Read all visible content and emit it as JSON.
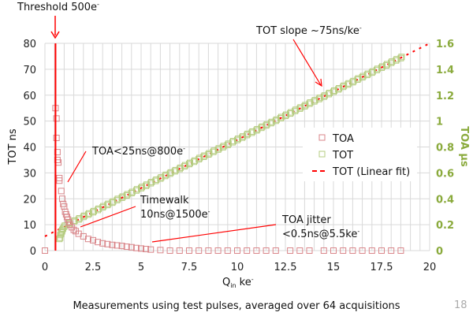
{
  "chart_data": {
    "type": "scatter",
    "title": "",
    "xlabel": "Q",
    "xlabel_sub": "in",
    "xlabel_unit": "ke",
    "xlabel_sup": "-",
    "ylabel": "TOT ns",
    "y2label": "TOA µs",
    "xlim": [
      0,
      20
    ],
    "ylim": [
      0,
      80
    ],
    "y2lim": [
      0,
      1.6
    ],
    "xticks": [
      "0",
      "2.5",
      "5",
      "7.5",
      "10",
      "12.5",
      "15",
      "17.5",
      "20"
    ],
    "yticks": [
      "0",
      "10",
      "20",
      "30",
      "40",
      "50",
      "60",
      "70",
      "80"
    ],
    "y2ticks": [
      "0",
      "0.2",
      "0.4",
      "0.6",
      "0.8",
      "1",
      "1.2",
      "1.4",
      "1.6"
    ],
    "grid": "vertical and horizontal",
    "legend_position": "center-right",
    "colors": {
      "TOA": "#c0504d",
      "TOT": "#9bbb59",
      "fit": "#ff0000",
      "threshold": "#ff0000"
    },
    "series": [
      {
        "name": "TOA",
        "marker": "square",
        "points": [
          [
            0,
            0
          ],
          [
            0.55,
            55
          ],
          [
            0.6,
            51
          ],
          [
            0.6,
            43.5
          ],
          [
            0.65,
            38
          ],
          [
            0.65,
            35
          ],
          [
            0.7,
            34
          ],
          [
            0.75,
            28
          ],
          [
            0.75,
            27
          ],
          [
            0.85,
            23
          ],
          [
            0.9,
            20
          ],
          [
            0.95,
            18
          ],
          [
            1.0,
            17
          ],
          [
            1.05,
            15
          ],
          [
            1.1,
            14
          ],
          [
            1.15,
            13
          ],
          [
            1.2,
            12
          ],
          [
            1.25,
            11
          ],
          [
            1.3,
            10
          ],
          [
            1.4,
            9
          ],
          [
            1.5,
            8
          ],
          [
            1.6,
            7.5
          ],
          [
            1.75,
            6.5
          ],
          [
            2,
            5.5
          ],
          [
            2.25,
            4.5
          ],
          [
            2.5,
            4
          ],
          [
            2.75,
            3.3
          ],
          [
            3,
            2.8
          ],
          [
            3.25,
            2.5
          ],
          [
            3.5,
            2.2
          ],
          [
            3.75,
            2
          ],
          [
            4,
            1.8
          ],
          [
            4.25,
            1.5
          ],
          [
            4.5,
            1.3
          ],
          [
            4.75,
            1
          ],
          [
            5,
            0.8
          ],
          [
            5.25,
            0.6
          ],
          [
            5.5,
            0.4
          ],
          [
            6,
            0.2
          ],
          [
            6.5,
            0
          ],
          [
            7,
            0
          ],
          [
            7.5,
            0
          ],
          [
            8,
            0
          ],
          [
            8.5,
            0
          ],
          [
            9,
            0
          ],
          [
            9.5,
            0
          ],
          [
            10,
            0
          ],
          [
            10.5,
            0
          ],
          [
            11,
            0
          ],
          [
            11.5,
            0
          ],
          [
            12,
            0
          ],
          [
            12.75,
            0
          ],
          [
            13.25,
            0
          ],
          [
            13.75,
            0
          ],
          [
            14.5,
            0
          ],
          [
            15,
            0
          ],
          [
            15.5,
            0
          ],
          [
            16,
            0
          ],
          [
            16.5,
            0
          ],
          [
            17,
            0
          ],
          [
            17.5,
            0
          ],
          [
            18,
            0
          ],
          [
            18.5,
            0
          ]
        ]
      },
      {
        "name": "TOT",
        "marker": "square",
        "points": [
          [
            0.75,
            4.5
          ],
          [
            0.8,
            6
          ],
          [
            0.85,
            7
          ],
          [
            0.9,
            8
          ],
          [
            1.0,
            9.2
          ],
          [
            1.25,
            10.2
          ],
          [
            1.5,
            11.1
          ],
          [
            1.75,
            12.0
          ],
          [
            2,
            13.0
          ],
          [
            2.25,
            13.9
          ],
          [
            2.5,
            14.8
          ],
          [
            2.75,
            15.7
          ],
          [
            3,
            16.7
          ],
          [
            3.25,
            17.6
          ],
          [
            3.5,
            18.5
          ],
          [
            3.75,
            19.5
          ],
          [
            4,
            20.4
          ],
          [
            4.25,
            21.3
          ],
          [
            4.5,
            22.2
          ],
          [
            4.75,
            23.2
          ],
          [
            5,
            24.1
          ],
          [
            5.25,
            25.0
          ],
          [
            5.5,
            26.0
          ],
          [
            5.75,
            26.9
          ],
          [
            6,
            27.8
          ],
          [
            6.25,
            28.8
          ],
          [
            6.5,
            29.7
          ],
          [
            6.75,
            30.6
          ],
          [
            7,
            31.5
          ],
          [
            7.25,
            32.5
          ],
          [
            7.5,
            33.4
          ],
          [
            7.75,
            34.3
          ],
          [
            8,
            35.3
          ],
          [
            8.25,
            36.2
          ],
          [
            8.5,
            37.1
          ],
          [
            8.75,
            38.1
          ],
          [
            9,
            39.0
          ],
          [
            9.25,
            39.9
          ],
          [
            9.5,
            40.8
          ],
          [
            9.75,
            41.8
          ],
          [
            10,
            42.7
          ],
          [
            10.25,
            43.6
          ],
          [
            10.5,
            44.6
          ],
          [
            10.75,
            45.5
          ],
          [
            11,
            46.4
          ],
          [
            11.25,
            47.4
          ],
          [
            11.5,
            48.3
          ],
          [
            11.75,
            49.2
          ],
          [
            12,
            50.1
          ],
          [
            12.25,
            51.1
          ],
          [
            12.5,
            52.0
          ],
          [
            12.75,
            52.9
          ],
          [
            13,
            53.9
          ],
          [
            13.25,
            54.8
          ],
          [
            13.5,
            55.7
          ],
          [
            13.75,
            56.7
          ],
          [
            14,
            57.6
          ],
          [
            14.25,
            58.5
          ],
          [
            14.5,
            59.4
          ],
          [
            14.75,
            60.4
          ],
          [
            15,
            61.3
          ],
          [
            15.25,
            62.2
          ],
          [
            15.5,
            63.2
          ],
          [
            15.75,
            64.1
          ],
          [
            16,
            65.0
          ],
          [
            16.25,
            66.0
          ],
          [
            16.5,
            66.9
          ],
          [
            16.75,
            67.8
          ],
          [
            17,
            68.7
          ],
          [
            17.25,
            69.7
          ],
          [
            17.5,
            70.6
          ],
          [
            17.75,
            71.5
          ],
          [
            18,
            72.5
          ],
          [
            18.25,
            73.4
          ],
          [
            18.5,
            74.3
          ]
        ]
      },
      {
        "name": "TOT (Linear fit)",
        "line": "dashed",
        "points": [
          [
            0,
            5.5
          ],
          [
            20,
            80
          ]
        ]
      }
    ],
    "threshold_x": 0.55,
    "annotations": {
      "threshold": "Threshold 500e",
      "slope": "TOT slope ~75ns/ke",
      "toa": "TOA<25ns@800e",
      "timewalk1": "Timewalk",
      "timewalk2": "10ns@1500e",
      "jitter1": "TOA jitter",
      "jitter2": "<0.5ns@5.5ke",
      "sup": "-"
    }
  },
  "footer": {
    "caption": "Measurements using test pulses, averaged over 64 acquisitions",
    "page_number": "18"
  }
}
